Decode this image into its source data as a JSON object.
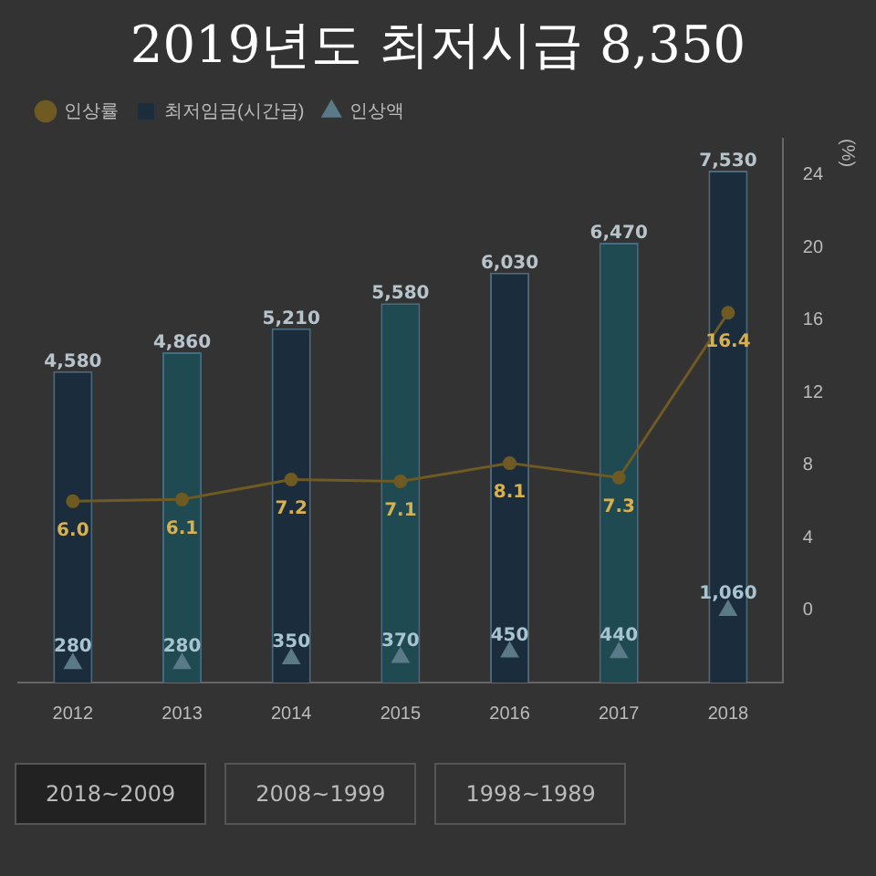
{
  "chart_data": {
    "type": "bar",
    "title": "2019년도 최저시급 8,350",
    "categories": [
      "2012",
      "2013",
      "2014",
      "2015",
      "2016",
      "2017",
      "2018"
    ],
    "series": [
      {
        "name": "인상률",
        "type": "line",
        "axis": "y2",
        "color": "#6e5a22",
        "marker": "circle",
        "value_labels": [
          "6.0",
          "6.1",
          "7.2",
          "7.1",
          "8.1",
          "7.3",
          "16.4"
        ],
        "values": [
          6.0,
          6.1,
          7.2,
          7.1,
          8.1,
          7.3,
          16.4
        ]
      },
      {
        "name": "최저임금(시간급)",
        "value_labels": [
          "4,580",
          "4,860",
          "5,210",
          "5,580",
          "6,030",
          "6,470",
          "7,530"
        ],
        "colors": [
          "#1b2c3c",
          "#1f4a52",
          "#1b2c3c",
          "#1f4a52",
          "#1b2c3c",
          "#1f4a52",
          "#1b2c3c"
        ],
        "color": "#1b2c3c",
        "values": [
          4580,
          4860,
          5210,
          5580,
          6030,
          6470,
          7530
        ]
      },
      {
        "name": "인상액",
        "type": "scatter",
        "color": "#5a7a88",
        "marker": "triangle",
        "value_labels": [
          "280",
          "280",
          "350",
          "370",
          "450",
          "440",
          "1,060"
        ],
        "values": [
          280,
          280,
          350,
          370,
          450,
          440,
          1060
        ]
      }
    ],
    "y2label": "(%)",
    "y2lim": [
      -4,
      26
    ],
    "y2ticks": [
      0,
      4,
      8,
      12,
      16,
      20,
      24
    ],
    "tick_labels": "x y2",
    "legend": "top left",
    "grid": false,
    "annotations": [
      "2018~2009",
      "2008~1999",
      "1998~1989"
    ]
  }
}
